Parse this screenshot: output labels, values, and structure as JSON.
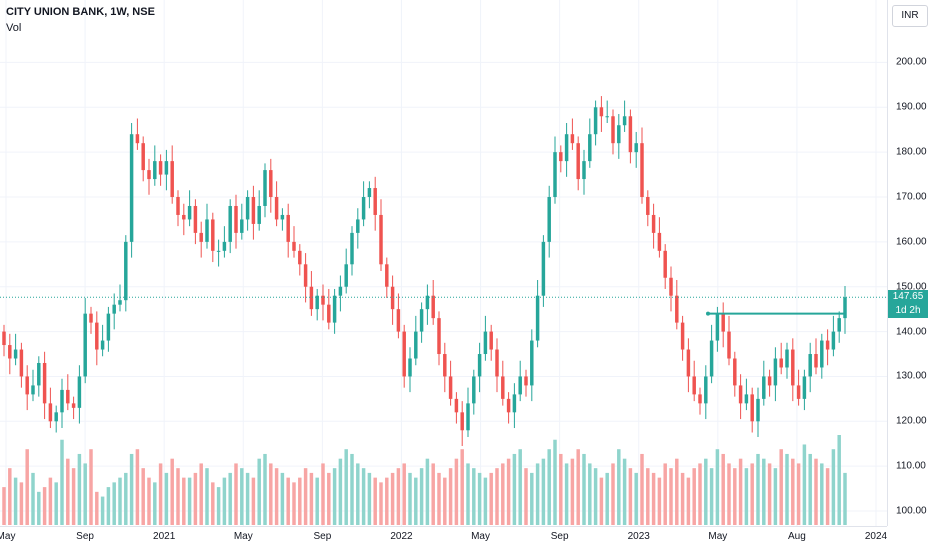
{
  "header": {
    "title": "CITY UNION BANK, 1W, NSE",
    "volume_label": "Vol"
  },
  "currency_button": "INR",
  "last_price_label": "147.65",
  "countdown_label": "1d 2h",
  "colors": {
    "up": "#26a69a",
    "down": "#ef5350",
    "volume_up": "#8fd4cc",
    "volume_down": "#f7a5a4",
    "price_line": "#26a69a",
    "grid": "#f0f3fa"
  },
  "chart_data": {
    "type": "candlestick",
    "title": "CITY UNION BANK, 1W, NSE",
    "x_ticks": [
      "May",
      "Sep",
      "2021",
      "May",
      "Sep",
      "2022",
      "May",
      "Sep",
      "2023",
      "May",
      "Aug",
      "2024"
    ],
    "y_ticks": [
      100,
      110,
      120,
      130,
      140,
      150,
      160,
      170,
      180,
      190,
      200
    ],
    "ylim": [
      98,
      205
    ],
    "last_price": 147.65,
    "resistance_level": 144,
    "grid": true,
    "volume_overlay": true,
    "close": [
      137,
      134,
      136,
      130,
      126,
      128,
      133,
      124,
      120,
      122,
      127,
      124,
      123,
      130,
      144,
      142,
      136,
      138,
      144,
      146,
      147,
      160,
      184,
      182,
      176,
      174,
      178,
      175,
      178,
      170,
      166,
      165,
      168,
      162,
      160,
      165,
      158,
      158,
      160,
      168,
      162,
      165,
      170,
      164,
      168,
      176,
      170,
      165,
      166,
      160,
      158,
      155,
      150,
      145,
      148,
      146,
      142,
      148,
      150,
      155,
      162,
      165,
      170,
      172,
      166,
      155,
      150,
      145,
      140,
      130,
      134,
      140,
      145,
      148,
      143,
      135,
      130,
      125,
      122,
      118,
      124,
      130,
      135,
      140,
      136,
      130,
      125,
      122,
      126,
      130,
      128,
      138,
      148,
      160,
      170,
      180,
      178,
      184,
      182,
      174,
      178,
      184,
      190,
      188,
      188,
      182,
      186,
      188,
      180,
      182,
      170,
      166,
      162,
      158,
      152,
      148,
      142,
      136,
      130,
      126,
      124,
      130,
      138,
      144,
      140,
      134,
      128,
      124,
      126,
      120,
      125,
      130,
      128,
      134,
      132,
      136,
      128,
      125,
      130,
      135,
      132,
      138,
      136,
      140,
      143,
      147.65
    ],
    "volume": [
      0.8,
      1.2,
      1.0,
      0.9,
      1.6,
      1.1,
      0.7,
      0.8,
      1.0,
      0.9,
      1.8,
      1.4,
      1.2,
      1.5,
      1.3,
      1.6,
      0.7,
      0.6,
      0.8,
      0.9,
      1.0,
      1.1,
      1.5,
      1.6,
      1.2,
      1.0,
      0.9,
      1.3,
      1.1,
      1.4,
      1.2,
      1.0,
      1.0,
      1.1,
      1.3,
      1.2,
      0.9,
      0.8,
      1.0,
      1.1,
      1.3,
      1.2,
      1.1,
      1.0,
      1.4,
      1.5,
      1.3,
      1.2,
      1.1,
      1.0,
      0.9,
      1.0,
      1.2,
      1.1,
      1.0,
      1.3,
      1.1,
      1.2,
      1.4,
      1.6,
      1.5,
      1.3,
      1.2,
      1.1,
      1.0,
      0.9,
      1.0,
      1.1,
      1.2,
      1.3,
      1.1,
      1.0,
      1.2,
      1.4,
      1.3,
      1.1,
      1.0,
      1.2,
      1.4,
      1.6,
      1.3,
      1.2,
      1.1,
      1.0,
      1.1,
      1.2,
      1.3,
      1.4,
      1.5,
      1.6,
      1.2,
      1.1,
      1.3,
      1.4,
      1.6,
      1.8,
      1.5,
      1.3,
      1.4,
      1.6,
      1.5,
      1.3,
      1.2,
      1.0,
      1.1,
      1.3,
      1.6,
      1.4,
      1.2,
      1.1,
      1.5,
      1.2,
      1.1,
      1.0,
      1.3,
      1.2,
      1.4,
      1.1,
      1.0,
      1.2,
      1.3,
      1.4,
      1.2,
      1.6,
      1.5,
      1.3,
      1.2,
      1.4,
      1.2,
      1.3,
      1.5,
      1.4,
      1.3,
      1.2,
      1.6,
      1.5,
      1.4,
      1.3,
      1.7,
      1.5,
      1.4,
      1.3,
      1.2,
      1.6,
      1.9,
      1.1
    ]
  }
}
